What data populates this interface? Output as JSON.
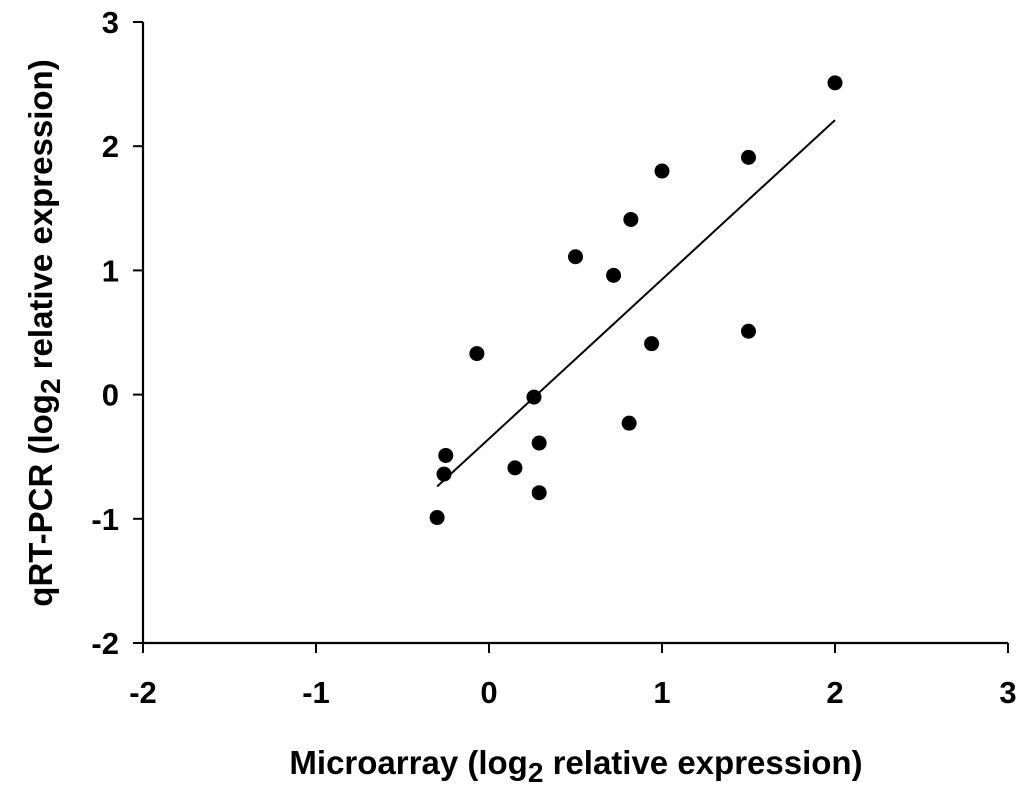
{
  "chart_data": {
    "type": "scatter",
    "xlabel": {
      "pre": "Microarray (log",
      "sub": "2",
      "post": " relative expression)"
    },
    "ylabel": {
      "pre": "qRT-PCR (log",
      "sub": "2",
      "post": " relative expression)"
    },
    "xlim": [
      -2,
      3
    ],
    "ylim": [
      -2,
      3
    ],
    "xticks": [
      "-2",
      "-1",
      "0",
      "1",
      "2",
      "3"
    ],
    "yticks": [
      "3",
      "2",
      "1",
      "0",
      "-1",
      "-2"
    ],
    "grid": false,
    "legend": "none",
    "series": [
      {
        "x": [
          -0.3,
          -0.25,
          -0.26,
          -0.07,
          0.15,
          0.26,
          0.29,
          0.29,
          0.5,
          0.72,
          0.82,
          0.81,
          0.94,
          1.0,
          1.5,
          1.5,
          2.0
        ],
        "y": [
          -0.99,
          -0.49,
          -0.64,
          0.33,
          -0.59,
          -0.02,
          -0.39,
          -0.79,
          1.11,
          0.96,
          1.41,
          -0.23,
          0.41,
          1.8,
          1.91,
          0.51,
          2.51
        ]
      }
    ],
    "trendline": {
      "x": [
        -0.3,
        2.0
      ],
      "y": [
        -0.74,
        2.21
      ]
    },
    "colors": {
      "points": "#000000",
      "axes": "#000000",
      "trendline": "#000000"
    }
  }
}
